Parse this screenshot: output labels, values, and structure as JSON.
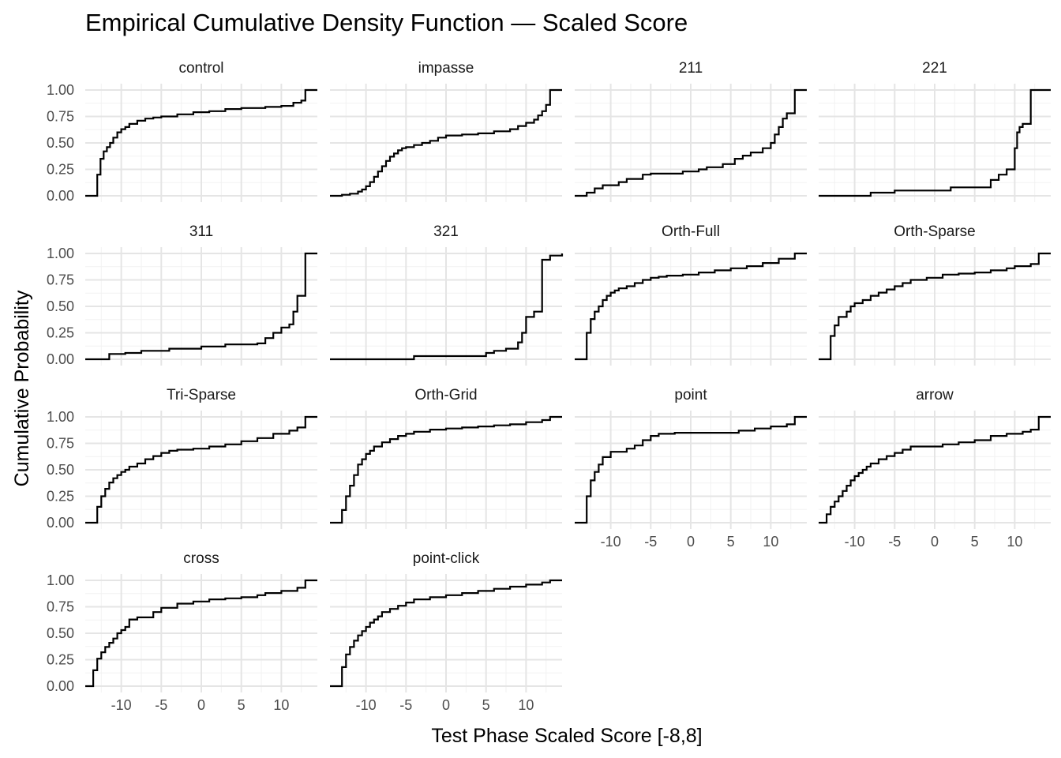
{
  "chart_data": {
    "type": "line",
    "subtype": "step-ecdf",
    "title": "Empirical Cumulative Density Function — Scaled Score",
    "xlabel": "Test Phase Scaled Score [-8,8]",
    "ylabel": "Cumulative Probability",
    "xlim": [
      -14.5,
      14.5
    ],
    "ylim": [
      0,
      1
    ],
    "x_ticks": [
      -10,
      -5,
      0,
      5,
      10
    ],
    "x_tick_labels": [
      "-10",
      "-5",
      "0",
      "5",
      "10"
    ],
    "y_ticks": [
      0,
      0.25,
      0.5,
      0.75,
      1
    ],
    "y_tick_labels": [
      "0.00",
      "0.25",
      "0.50",
      "0.75",
      "1.00"
    ],
    "grid": true,
    "layout": "facet_wrap 4 columns",
    "panels": [
      {
        "name": "control",
        "x": [
          -14.5,
          -13,
          -12.6,
          -12.2,
          -11.8,
          -11.4,
          -11,
          -10.5,
          -10,
          -9.5,
          -9,
          -8,
          -7,
          -6,
          -5,
          -3,
          -1,
          1,
          3,
          5,
          8,
          10,
          11.5,
          12.5,
          13,
          14.5
        ],
        "y": [
          0,
          0.2,
          0.35,
          0.42,
          0.46,
          0.5,
          0.55,
          0.6,
          0.63,
          0.65,
          0.68,
          0.71,
          0.73,
          0.74,
          0.75,
          0.77,
          0.79,
          0.8,
          0.82,
          0.83,
          0.84,
          0.85,
          0.88,
          0.9,
          1,
          1
        ]
      },
      {
        "name": "impasse",
        "x": [
          -14.5,
          -13,
          -12,
          -11,
          -10.5,
          -10,
          -9.5,
          -9,
          -8.5,
          -8,
          -7.5,
          -7,
          -6.5,
          -6,
          -5.5,
          -5,
          -4,
          -3,
          -2,
          -1,
          0,
          2,
          4,
          6,
          8,
          9,
          10,
          11,
          11.5,
          12,
          12.5,
          13,
          14.5
        ],
        "y": [
          0,
          0.01,
          0.02,
          0.04,
          0.06,
          0.09,
          0.13,
          0.18,
          0.23,
          0.28,
          0.33,
          0.37,
          0.4,
          0.43,
          0.45,
          0.46,
          0.48,
          0.5,
          0.52,
          0.55,
          0.57,
          0.58,
          0.59,
          0.61,
          0.63,
          0.66,
          0.69,
          0.72,
          0.76,
          0.8,
          0.86,
          1,
          1
        ]
      },
      {
        "name": "211",
        "x": [
          -14.5,
          -13,
          -12,
          -11,
          -9,
          -8,
          -6,
          -5,
          -1,
          1,
          2,
          4,
          5.5,
          6.5,
          7.5,
          9,
          10,
          10.5,
          11,
          11.5,
          12,
          13,
          14.5
        ],
        "y": [
          0,
          0.03,
          0.07,
          0.1,
          0.13,
          0.16,
          0.2,
          0.21,
          0.23,
          0.25,
          0.27,
          0.3,
          0.35,
          0.38,
          0.41,
          0.45,
          0.5,
          0.58,
          0.65,
          0.73,
          0.78,
          1,
          1
        ]
      },
      {
        "name": "221",
        "x": [
          -14.5,
          -8,
          -5,
          2,
          7,
          8,
          9,
          10,
          10.3,
          10.6,
          11,
          12,
          14.5
        ],
        "y": [
          0,
          0.03,
          0.05,
          0.08,
          0.15,
          0.2,
          0.25,
          0.45,
          0.6,
          0.65,
          0.68,
          1,
          1
        ]
      },
      {
        "name": "311",
        "x": [
          -14.5,
          -11.5,
          -9.5,
          -7.5,
          -4,
          0,
          3,
          7,
          8,
          9,
          10,
          11,
          11.5,
          12,
          13,
          14.5
        ],
        "y": [
          0,
          0.05,
          0.06,
          0.08,
          0.1,
          0.12,
          0.14,
          0.15,
          0.2,
          0.25,
          0.3,
          0.33,
          0.45,
          0.6,
          1,
          1
        ]
      },
      {
        "name": "321",
        "x": [
          -14.5,
          -4,
          5,
          6,
          7.5,
          9,
          9.5,
          10,
          11,
          12,
          13,
          14.5
        ],
        "y": [
          0,
          0.03,
          0.06,
          0.08,
          0.1,
          0.16,
          0.25,
          0.4,
          0.45,
          0.94,
          0.98,
          1
        ]
      },
      {
        "name": "Orth-Full",
        "x": [
          -14.5,
          -13,
          -12.5,
          -12,
          -11.5,
          -11,
          -10.5,
          -10,
          -9.5,
          -9,
          -8,
          -7,
          -6,
          -5,
          -4,
          -3,
          -1,
          1,
          3,
          5,
          7,
          9,
          11,
          13,
          14.5
        ],
        "y": [
          0,
          0.25,
          0.38,
          0.45,
          0.5,
          0.56,
          0.6,
          0.63,
          0.65,
          0.67,
          0.69,
          0.72,
          0.75,
          0.77,
          0.78,
          0.79,
          0.8,
          0.82,
          0.84,
          0.86,
          0.88,
          0.91,
          0.95,
          1,
          1
        ]
      },
      {
        "name": "Orth-Sparse",
        "x": [
          -14.5,
          -13,
          -12.5,
          -12,
          -11,
          -10.5,
          -10,
          -9,
          -8,
          -7,
          -6,
          -5,
          -4,
          -3,
          -1,
          1,
          3,
          5,
          7,
          9,
          10,
          12,
          13,
          14.5
        ],
        "y": [
          0,
          0.22,
          0.32,
          0.4,
          0.45,
          0.5,
          0.53,
          0.56,
          0.6,
          0.63,
          0.66,
          0.69,
          0.72,
          0.75,
          0.77,
          0.8,
          0.81,
          0.82,
          0.84,
          0.86,
          0.88,
          0.9,
          1,
          1
        ]
      },
      {
        "name": "Tri-Sparse",
        "x": [
          -14.5,
          -13,
          -12.5,
          -12,
          -11.5,
          -11,
          -10.5,
          -10,
          -9.5,
          -9,
          -8,
          -7,
          -6,
          -5,
          -4,
          -3,
          -1,
          1,
          3,
          5,
          7,
          9,
          11,
          12,
          13,
          14.5
        ],
        "y": [
          0,
          0.15,
          0.25,
          0.32,
          0.38,
          0.42,
          0.45,
          0.48,
          0.5,
          0.53,
          0.56,
          0.6,
          0.63,
          0.66,
          0.68,
          0.69,
          0.7,
          0.72,
          0.74,
          0.77,
          0.8,
          0.84,
          0.87,
          0.9,
          1,
          1
        ]
      },
      {
        "name": "Orth-Grid",
        "x": [
          -14.5,
          -13,
          -12.5,
          -12,
          -11.5,
          -11,
          -10.5,
          -10,
          -9.5,
          -9,
          -8,
          -7,
          -6,
          -5,
          -4,
          -2,
          0,
          2,
          4,
          6,
          8,
          10,
          12,
          13,
          14.5
        ],
        "y": [
          0,
          0.12,
          0.25,
          0.35,
          0.45,
          0.55,
          0.6,
          0.65,
          0.68,
          0.72,
          0.76,
          0.79,
          0.82,
          0.84,
          0.86,
          0.88,
          0.89,
          0.9,
          0.91,
          0.92,
          0.93,
          0.95,
          0.97,
          1,
          1
        ]
      },
      {
        "name": "point",
        "x": [
          -14.5,
          -13,
          -12.5,
          -12,
          -11.5,
          -11,
          -10,
          -8,
          -7,
          -6,
          -5,
          -4,
          -2,
          2,
          6,
          8,
          10,
          12,
          13,
          14.5
        ],
        "y": [
          0,
          0.25,
          0.4,
          0.48,
          0.55,
          0.62,
          0.67,
          0.7,
          0.73,
          0.78,
          0.82,
          0.84,
          0.85,
          0.85,
          0.87,
          0.89,
          0.91,
          0.93,
          1,
          1
        ]
      },
      {
        "name": "arrow",
        "x": [
          -14.5,
          -13.5,
          -13,
          -12.5,
          -12,
          -11.5,
          -11,
          -10.5,
          -10,
          -9.5,
          -9,
          -8.5,
          -8,
          -7,
          -6,
          -5,
          -4,
          -3,
          -1,
          1,
          3,
          5,
          7,
          9,
          11,
          12,
          13,
          14.5
        ],
        "y": [
          0,
          0.08,
          0.15,
          0.2,
          0.25,
          0.3,
          0.35,
          0.4,
          0.44,
          0.47,
          0.5,
          0.53,
          0.56,
          0.6,
          0.63,
          0.66,
          0.69,
          0.72,
          0.72,
          0.74,
          0.76,
          0.78,
          0.82,
          0.84,
          0.86,
          0.88,
          1,
          1
        ]
      },
      {
        "name": "cross",
        "x": [
          -14.5,
          -13.5,
          -13,
          -12.5,
          -12,
          -11.5,
          -11,
          -10.5,
          -10,
          -9.5,
          -9,
          -8,
          -6,
          -5,
          -3,
          -1,
          1,
          3,
          5,
          7,
          8,
          10,
          12,
          13,
          14.5
        ],
        "y": [
          0,
          0.15,
          0.26,
          0.32,
          0.37,
          0.41,
          0.45,
          0.5,
          0.53,
          0.56,
          0.63,
          0.65,
          0.7,
          0.74,
          0.78,
          0.8,
          0.82,
          0.83,
          0.84,
          0.86,
          0.88,
          0.9,
          0.93,
          1,
          1
        ]
      },
      {
        "name": "point-click",
        "x": [
          -14.5,
          -13,
          -12.5,
          -12,
          -11.5,
          -11,
          -10.5,
          -10,
          -9.5,
          -9,
          -8.5,
          -8,
          -7,
          -6,
          -5,
          -4,
          -2,
          0,
          2,
          4,
          6,
          8,
          10,
          12,
          13,
          14.5
        ],
        "y": [
          0,
          0.18,
          0.3,
          0.37,
          0.43,
          0.48,
          0.52,
          0.56,
          0.6,
          0.63,
          0.66,
          0.7,
          0.73,
          0.76,
          0.79,
          0.82,
          0.84,
          0.86,
          0.88,
          0.9,
          0.92,
          0.94,
          0.96,
          0.98,
          1,
          1
        ]
      }
    ]
  }
}
